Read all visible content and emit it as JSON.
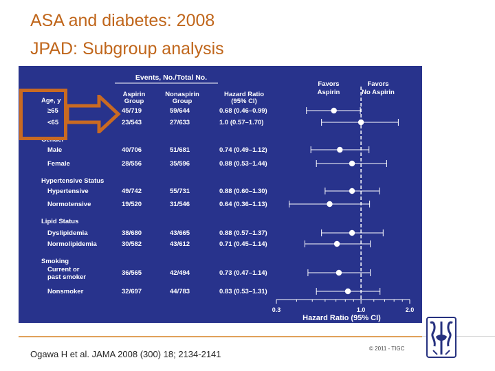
{
  "slide": {
    "title_line1": "ASA and diabetes: 2008",
    "title_line2": "JPAD: Subgroup analysis",
    "citation": "Ogawa H et al. JAMA 2008 (300) 18; 2134-2141",
    "copyright": "© 2011 - TIGC"
  },
  "colors": {
    "title": "#c0661b",
    "panel_bg": "#28338c",
    "highlight": "#c96a22",
    "footer_line": "#e0a15a"
  },
  "chart_data": {
    "type": "forest",
    "header_events": "Events, No./Total No.",
    "col_aspirin": [
      "Aspirin",
      "Group"
    ],
    "col_nonaspirin": [
      "Nonaspirin",
      "Group"
    ],
    "col_hr": [
      "Hazard Ratio",
      "(95% CI)"
    ],
    "favors_left": [
      "Favors",
      "Aspirin"
    ],
    "favors_right": [
      "Favors",
      "No Aspirin"
    ],
    "xlabel": "Hazard Ratio (95% CI)",
    "x_scale": "log",
    "xlim": [
      0.3,
      2.0
    ],
    "x_ticks": [
      {
        "value": 0.3,
        "label": "0.3"
      },
      {
        "value": 1.0,
        "label": "1.0"
      },
      {
        "value": 2.0,
        "label": "2.0"
      }
    ],
    "reference_line": 1.0,
    "rows": [
      {
        "kind": "header",
        "label": "Age, y"
      },
      {
        "kind": "data",
        "label": "≥65",
        "aspirin": "45/719",
        "nonaspirin": "59/644",
        "hr_text": "0.68 (0.46–0.99)",
        "hr": 0.68,
        "lo": 0.46,
        "hi": 0.99
      },
      {
        "kind": "data",
        "label": "<65",
        "aspirin": "23/543",
        "nonaspirin": "27/633",
        "hr_text": "1.0 (0.57–1.70)",
        "hr": 1.0,
        "lo": 0.57,
        "hi": 1.7
      },
      {
        "kind": "header",
        "label": "Gender"
      },
      {
        "kind": "data",
        "label": "Male",
        "aspirin": "40/706",
        "nonaspirin": "51/681",
        "hr_text": "0.74 (0.49–1.12)",
        "hr": 0.74,
        "lo": 0.49,
        "hi": 1.12
      },
      {
        "kind": "data",
        "label": "Female",
        "aspirin": "28/556",
        "nonaspirin": "35/596",
        "hr_text": "0.88 (0.53–1.44)",
        "hr": 0.88,
        "lo": 0.53,
        "hi": 1.44
      },
      {
        "kind": "header",
        "label": "Hypertensive Status"
      },
      {
        "kind": "data",
        "label": "Hypertensive",
        "aspirin": "49/742",
        "nonaspirin": "55/731",
        "hr_text": "0.88 (0.60–1.30)",
        "hr": 0.88,
        "lo": 0.6,
        "hi": 1.3
      },
      {
        "kind": "data",
        "label": "Normotensive",
        "aspirin": "19/520",
        "nonaspirin": "31/546",
        "hr_text": "0.64 (0.36–1.13)",
        "hr": 0.64,
        "lo": 0.36,
        "hi": 1.13
      },
      {
        "kind": "header",
        "label": "Lipid Status"
      },
      {
        "kind": "data",
        "label": "Dyslipidemia",
        "aspirin": "38/680",
        "nonaspirin": "43/665",
        "hr_text": "0.88 (0.57–1.37)",
        "hr": 0.88,
        "lo": 0.57,
        "hi": 1.37
      },
      {
        "kind": "data",
        "label": "Normolipidemia",
        "aspirin": "30/582",
        "nonaspirin": "43/612",
        "hr_text": "0.71 (0.45–1.14)",
        "hr": 0.71,
        "lo": 0.45,
        "hi": 1.14
      },
      {
        "kind": "header",
        "label": "Smoking"
      },
      {
        "kind": "data",
        "label": [
          "Current or",
          "past smoker"
        ],
        "aspirin": "36/565",
        "nonaspirin": "42/494",
        "hr_text": "0.73 (0.47–1.14)",
        "hr": 0.73,
        "lo": 0.47,
        "hi": 1.14
      },
      {
        "kind": "data",
        "label": "Nonsmoker",
        "aspirin": "32/697",
        "nonaspirin": "44/783",
        "hr_text": "0.83 (0.53–1.31)",
        "hr": 0.83,
        "lo": 0.53,
        "hi": 1.31
      }
    ]
  }
}
